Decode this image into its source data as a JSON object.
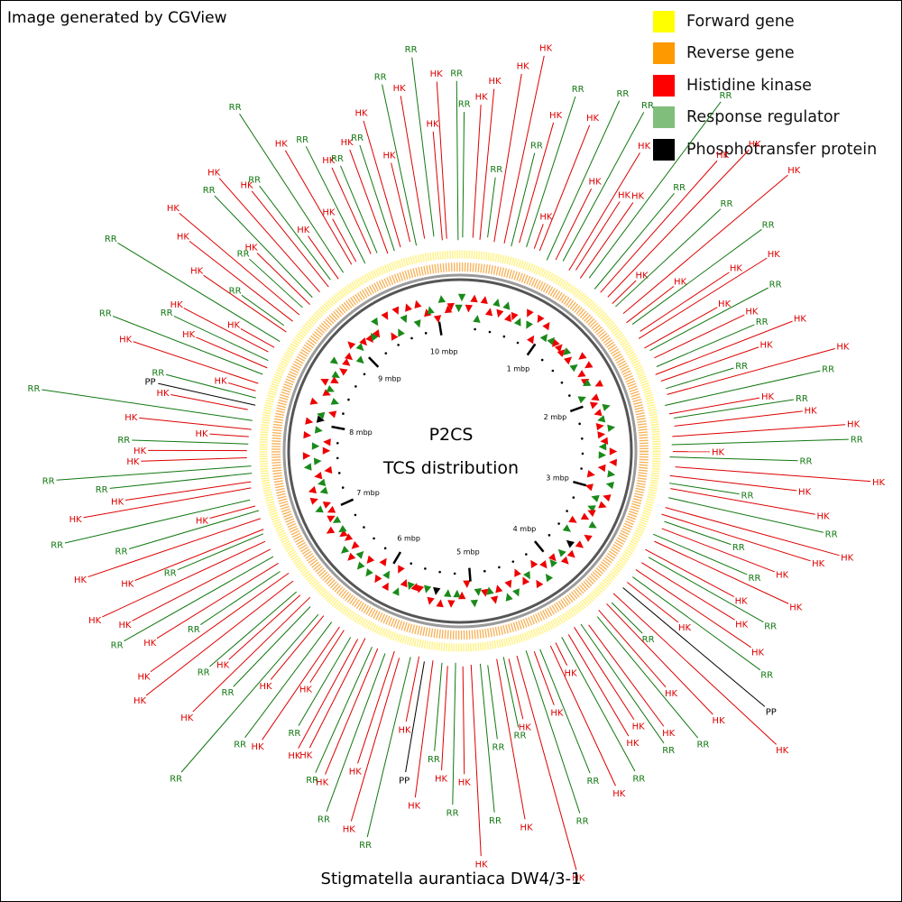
{
  "header": {
    "credit": "Image generated by CGView"
  },
  "legend": [
    {
      "label": "Forward gene",
      "color": "#ffff00"
    },
    {
      "label": "Reverse gene",
      "color": "#ff9900"
    },
    {
      "label": "Histidine kinase",
      "color": "#ff0000"
    },
    {
      "label": "Response regulator",
      "color": "#7fbf7b"
    },
    {
      "label": "Phosphotransfer protein",
      "color": "#000000"
    }
  ],
  "center": {
    "title": "P2CS",
    "subtitle": "TCS distribution"
  },
  "footer": {
    "organism": "Stigmatella aurantiaca DW4/3-1"
  },
  "map": {
    "genome_size_mbp": 10.26,
    "ticks": [
      "1 mbp",
      "2 mbp",
      "3 mbp",
      "4 mbp",
      "5 mbp",
      "6 mbp",
      "7 mbp",
      "8 mbp",
      "9 mbp",
      "10 mbp"
    ],
    "label_colors": {
      "HK": "#dd0000",
      "RR": "#117711",
      "PP": "#000000"
    },
    "features": [
      "RR",
      "HK",
      "HK",
      "RR",
      "HK",
      "HK",
      "RR",
      "HK",
      "RR",
      "HK",
      "HK",
      "RR",
      "HK",
      "RR",
      "HK",
      "HK",
      "HK",
      "RR",
      "RR",
      "HK",
      "HK",
      "HK",
      "RR",
      "HK",
      "HK",
      "RR",
      "HK",
      "HK",
      "HK",
      "RR",
      "HK",
      "RR",
      "HK",
      "HK",
      "RR",
      "HK",
      "RR",
      "HK",
      "RR",
      "HK",
      "HK",
      "RR",
      "HK",
      "RR",
      "HK",
      "HK",
      "RR",
      "HK",
      "RR",
      "HK",
      "HK",
      "RR",
      "HK",
      "RR",
      "HK",
      "HK",
      "RR",
      "HK",
      "HK",
      "RR",
      "HK",
      "PP",
      "HK",
      "RR",
      "HK",
      "HK",
      "RR",
      "HK",
      "RR",
      "HK",
      "HK",
      "RR",
      "HK",
      "HK",
      "RR",
      "HK",
      "RR",
      "HK",
      "HK",
      "RR",
      "HK",
      "RR",
      "RR",
      "HK",
      "HK",
      "RR",
      "HK",
      "RR",
      "HK",
      "PP",
      "HK",
      "RR",
      "HK",
      "HK",
      "RR",
      "HK",
      "RR",
      "HK",
      "HK",
      "RR",
      "HK",
      "HK",
      "RR",
      "HK",
      "RR",
      "RR",
      "HK",
      "HK",
      "RR",
      "HK",
      "HK",
      "RR",
      "HK",
      "RR",
      "HK",
      "HK",
      "RR",
      "HK",
      "HK",
      "RR",
      "HK",
      "RR",
      "HK",
      "HK",
      "RR",
      "RR",
      "HK",
      "HK",
      "RR",
      "HK",
      "HK",
      "RR",
      "HK",
      "PP",
      "RR",
      "HK",
      "HK",
      "RR",
      "HK",
      "RR",
      "HK",
      "HK",
      "RR",
      "HK",
      "RR",
      "HK",
      "HK",
      "RR",
      "HK",
      "RR",
      "HK",
      "HK",
      "RR",
      "HK",
      "RR",
      "HK",
      "HK",
      "RR",
      "HK",
      "RR",
      "HK",
      "RR",
      "HK",
      "HK",
      "RR",
      "HK",
      "RR",
      "HK",
      "HK",
      "RR"
    ]
  }
}
